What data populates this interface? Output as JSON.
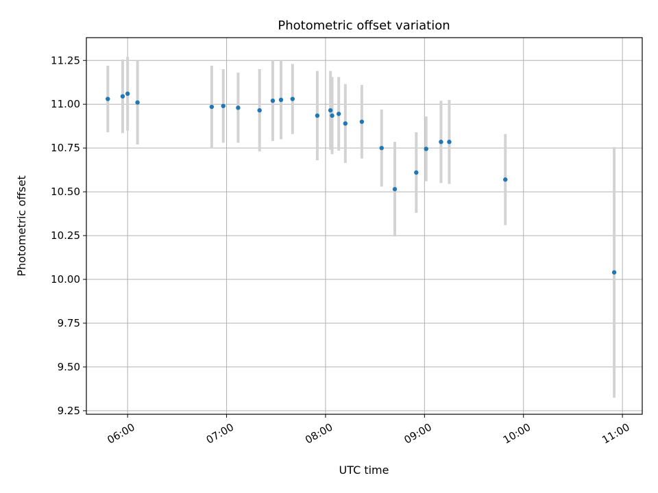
{
  "chart_data": {
    "type": "scatter",
    "title": "Photometric offset variation",
    "xlabel": "UTC time",
    "ylabel": "Photometric offset",
    "x_tick_labels": [
      "06:00",
      "07:00",
      "08:00",
      "09:00",
      "10:00",
      "11:00"
    ],
    "x_tick_times": [
      "06:00",
      "07:00",
      "08:00",
      "09:00",
      "10:00",
      "11:00"
    ],
    "y_ticks": [
      9.25,
      9.5,
      9.75,
      10.0,
      10.25,
      10.5,
      10.75,
      11.0,
      11.25
    ],
    "y_tick_labels": [
      "9.25",
      "9.50",
      "9.75",
      "10.00",
      "10.25",
      "10.50",
      "10.75",
      "11.00",
      "11.25"
    ],
    "xlim": [
      "05:35",
      "11:12"
    ],
    "ylim": [
      9.23,
      11.38
    ],
    "grid": true,
    "colors": {
      "point": "#1f77b4",
      "errorbar": "#d3d3d3",
      "grid": "#b0b0b0"
    },
    "series": [
      {
        "points": [
          {
            "time": "05:48",
            "y": 11.03,
            "yerr": 0.19
          },
          {
            "time": "05:57",
            "y": 11.045,
            "yerr": 0.21
          },
          {
            "time": "06:00",
            "y": 11.06,
            "yerr": 0.21
          },
          {
            "time": "06:06",
            "y": 11.01,
            "yerr": 0.24
          },
          {
            "time": "06:51",
            "y": 10.985,
            "yerr": 0.235
          },
          {
            "time": "06:58",
            "y": 10.99,
            "yerr": 0.21
          },
          {
            "time": "07:07",
            "y": 10.98,
            "yerr": 0.2
          },
          {
            "time": "07:20",
            "y": 10.965,
            "yerr": 0.235
          },
          {
            "time": "07:28",
            "y": 11.02,
            "yerr": 0.23
          },
          {
            "time": "07:33",
            "y": 11.025,
            "yerr": 0.225
          },
          {
            "time": "07:40",
            "y": 11.03,
            "yerr": 0.2
          },
          {
            "time": "07:55",
            "y": 10.935,
            "yerr": 0.255
          },
          {
            "time": "08:03",
            "y": 10.965,
            "yerr": 0.225
          },
          {
            "time": "08:04",
            "y": 10.935,
            "yerr": 0.22
          },
          {
            "time": "08:08",
            "y": 10.945,
            "yerr": 0.21
          },
          {
            "time": "08:12",
            "y": 10.89,
            "yerr": 0.225
          },
          {
            "time": "08:22",
            "y": 10.9,
            "yerr": 0.21
          },
          {
            "time": "08:34",
            "y": 10.75,
            "yerr": 0.22
          },
          {
            "time": "08:42",
            "y": 10.515,
            "yerr": 0.27
          },
          {
            "time": "08:55",
            "y": 10.61,
            "yerr": 0.23
          },
          {
            "time": "09:01",
            "y": 10.745,
            "yerr": 0.185
          },
          {
            "time": "09:10",
            "y": 10.785,
            "yerr": 0.235
          },
          {
            "time": "09:15",
            "y": 10.785,
            "yerr": 0.24
          },
          {
            "time": "09:49",
            "y": 10.57,
            "yerr": 0.26
          },
          {
            "time": "10:55",
            "y": 10.04,
            "yerr": 0.715
          }
        ]
      }
    ]
  }
}
